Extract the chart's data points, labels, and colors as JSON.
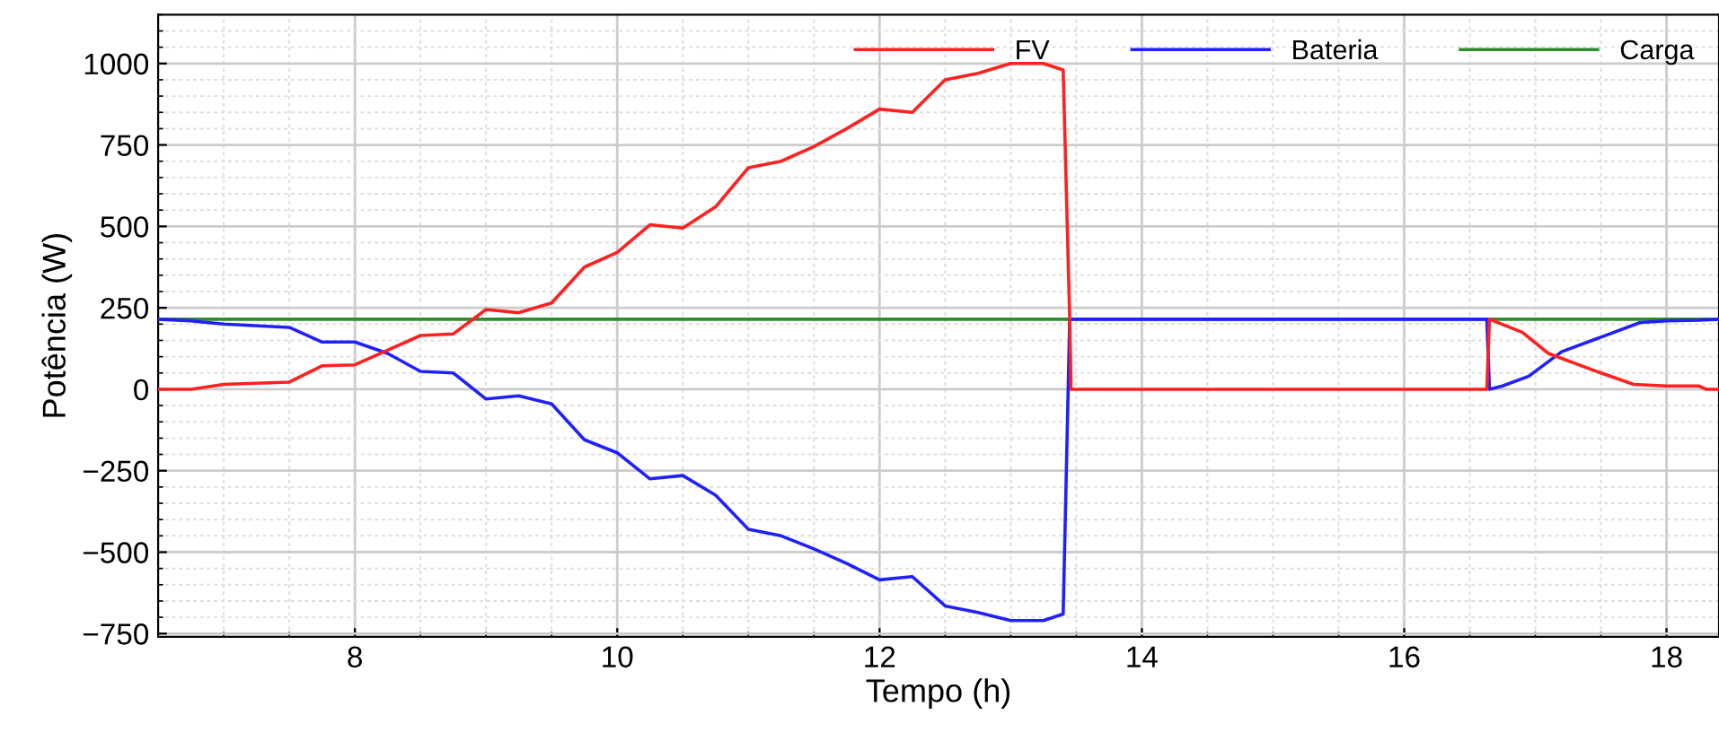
{
  "chart_data": {
    "type": "line",
    "xlabel": "Tempo (h)",
    "ylabel": "Potência (W)",
    "xlim": [
      6.5,
      18.4
    ],
    "xticks": [
      8,
      10,
      12,
      14,
      16,
      18
    ],
    "ylim": [
      -760,
      1150
    ],
    "yticks": [
      -750,
      -500,
      -250,
      0,
      250,
      500,
      750,
      1000
    ],
    "grid": true,
    "legend": "top right",
    "line_style": "solid",
    "marker": "none",
    "series": [
      {
        "name": "FV",
        "color": "#ff2020",
        "x": [
          6.5,
          6.75,
          7.0,
          7.5,
          7.75,
          8.0,
          8.25,
          8.5,
          8.75,
          9.0,
          9.25,
          9.5,
          9.75,
          10.0,
          10.25,
          10.5,
          10.75,
          11.0,
          11.25,
          11.5,
          11.75,
          12.0,
          12.25,
          12.5,
          12.75,
          13.0,
          13.25,
          13.4,
          13.45,
          13.46,
          16.63,
          16.65,
          16.9,
          17.1,
          17.5,
          17.75,
          18.0,
          18.25,
          18.3,
          18.4
        ],
        "values": [
          0,
          0,
          15,
          22,
          72,
          75,
          120,
          165,
          170,
          245,
          235,
          265,
          375,
          420,
          505,
          495,
          560,
          680,
          700,
          745,
          800,
          860,
          850,
          950,
          970,
          1000,
          1000,
          980,
          215,
          0,
          0,
          215,
          175,
          110,
          50,
          15,
          10,
          10,
          0,
          0
        ]
      },
      {
        "name": "Bateria",
        "color": "#2020ff",
        "x": [
          6.5,
          6.75,
          7.0,
          7.5,
          7.75,
          8.0,
          8.25,
          8.5,
          8.75,
          9.0,
          9.25,
          9.5,
          9.75,
          10.0,
          10.25,
          10.5,
          10.75,
          11.0,
          11.25,
          11.5,
          11.75,
          12.0,
          12.25,
          12.5,
          12.75,
          13.0,
          13.25,
          13.4,
          13.45,
          16.63,
          16.65,
          16.75,
          16.95,
          17.2,
          17.5,
          17.8,
          18.0,
          18.25,
          18.4
        ],
        "values": [
          215,
          210,
          200,
          190,
          145,
          145,
          110,
          55,
          50,
          -30,
          -20,
          -45,
          -155,
          -195,
          -275,
          -265,
          -325,
          -430,
          -450,
          -490,
          -535,
          -585,
          -575,
          -665,
          -685,
          -710,
          -710,
          -690,
          215,
          215,
          0,
          10,
          40,
          115,
          160,
          205,
          210,
          212,
          215
        ]
      },
      {
        "name": "Carga",
        "color": "#2e8b2e",
        "x": [
          6.5,
          18.4
        ],
        "values": [
          215,
          215
        ]
      }
    ]
  }
}
